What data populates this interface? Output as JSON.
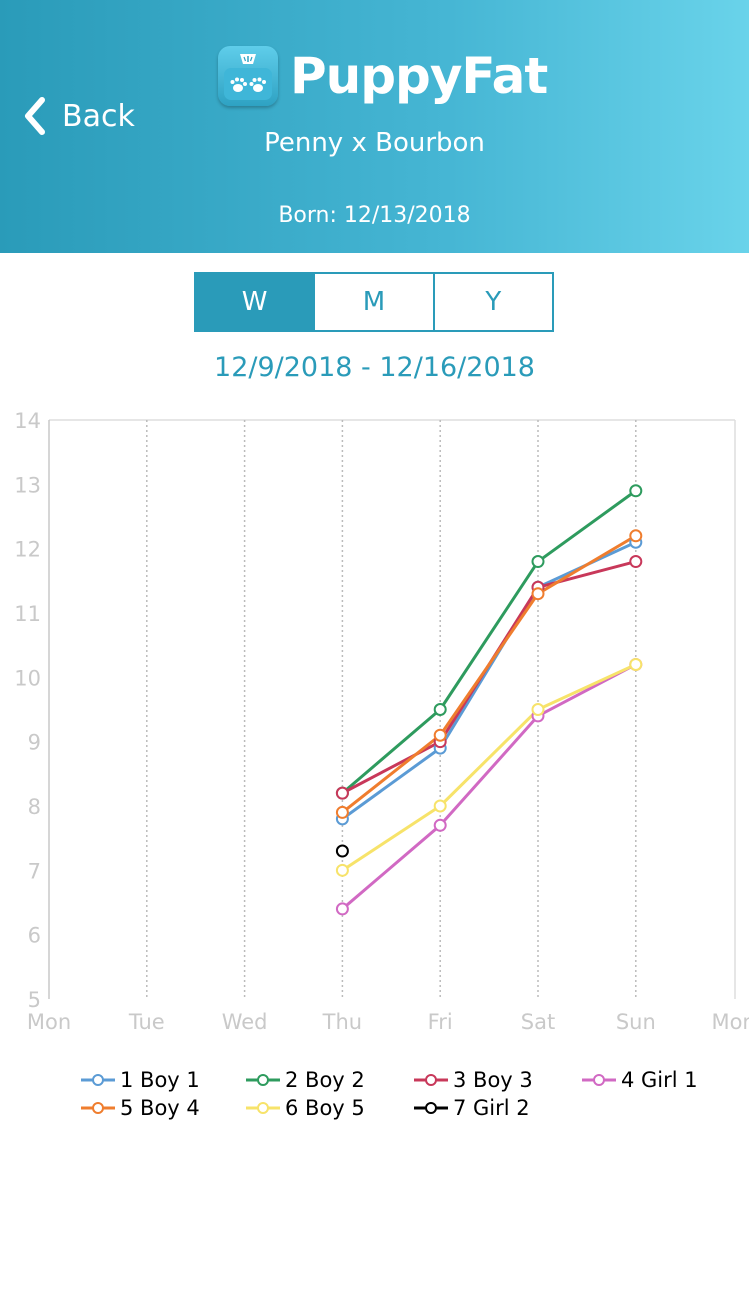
{
  "header": {
    "back_label": "Back",
    "app_name": "PuppyFat",
    "litter_name": "Penny x Bourbon",
    "born": "Born: 12/13/2018",
    "colors": {
      "gradient_start": "#2a9bb9",
      "gradient_end": "#69d3ea"
    },
    "icons": {
      "back": "chevron-left-icon",
      "logo": "scale-paw-icon"
    }
  },
  "period_tabs": [
    {
      "label": "W",
      "active": true
    },
    {
      "label": "M",
      "active": false
    },
    {
      "label": "Y",
      "active": false
    }
  ],
  "date_range": "12/9/2018 - 12/16/2018",
  "chart_data": {
    "type": "line",
    "categories": [
      "Mon",
      "Tue",
      "Wed",
      "Thu",
      "Fri",
      "Sat",
      "Sun",
      "Mon"
    ],
    "ylim": [
      5,
      14
    ],
    "yticks": [
      "5",
      "6",
      "7",
      "8",
      "9",
      "10",
      "11",
      "12",
      "13",
      "14"
    ],
    "grid": "vertical-dotted",
    "legend_position": "bottom",
    "series": [
      {
        "name": "1 Boy 1",
        "color": "#5b9bd5",
        "values": [
          null,
          null,
          null,
          7.8,
          8.9,
          11.4,
          12.1,
          null
        ]
      },
      {
        "name": "2 Boy 2",
        "color": "#2e9b5e",
        "values": [
          null,
          null,
          null,
          8.2,
          9.5,
          11.8,
          12.9,
          null
        ]
      },
      {
        "name": "3 Boy 3",
        "color": "#c8385a",
        "values": [
          null,
          null,
          null,
          8.2,
          9.0,
          11.4,
          11.8,
          null
        ]
      },
      {
        "name": "4 Girl 1",
        "color": "#d169c3",
        "values": [
          null,
          null,
          null,
          6.4,
          7.7,
          9.4,
          10.2,
          null
        ]
      },
      {
        "name": "5 Boy 4",
        "color": "#ef7d2e",
        "values": [
          null,
          null,
          null,
          7.9,
          9.1,
          11.3,
          12.2,
          null
        ]
      },
      {
        "name": "6 Boy 5",
        "color": "#f7e36a",
        "values": [
          null,
          null,
          null,
          7.0,
          8.0,
          9.5,
          10.2,
          null
        ]
      },
      {
        "name": "7 Girl 2",
        "color": "#000000",
        "values": [
          null,
          null,
          null,
          7.3,
          null,
          null,
          null,
          null
        ]
      }
    ]
  }
}
